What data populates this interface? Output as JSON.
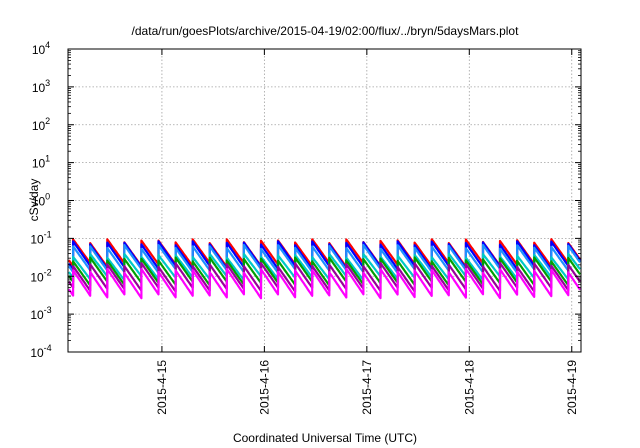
{
  "chart_data": {
    "type": "line",
    "title": "/data/run/goesPlots/archive/2015-04-19/02:00/flux/../bryn/5daysMars.plot",
    "xlabel": "Coordinated Universal Time (UTC)",
    "ylabel": "cSv/day",
    "yscale": "log",
    "ylim": [
      0.0001,
      10000
    ],
    "xlim": [
      "2015-04-14 02:00",
      "2015-04-19 02:10"
    ],
    "grid": true,
    "legend": "none",
    "xticks": [
      "2015-4-15",
      "2015-4-16",
      "2015-4-17",
      "2015-4-18",
      "2015-4-19"
    ],
    "yticks": [
      {
        "base": "10",
        "exp": "-4"
      },
      {
        "base": "10",
        "exp": "-3"
      },
      {
        "base": "10",
        "exp": "-2"
      },
      {
        "base": "10",
        "exp": "-1"
      },
      {
        "base": "10",
        "exp": "0"
      },
      {
        "base": "10",
        "exp": "1"
      },
      {
        "base": "10",
        "exp": "2"
      },
      {
        "base": "10",
        "exp": "3"
      },
      {
        "base": "10",
        "exp": "4"
      }
    ],
    "pattern": {
      "cycle_hours": 4,
      "cycles_per_day": 6,
      "shape": "sawtooth: fast rise then exponential-like decay within each cycle"
    },
    "series": [
      {
        "color": "#ff0000",
        "peak": 0.085,
        "trough": 0.02
      },
      {
        "color": "#0000ff",
        "peak": 0.075,
        "trough": 0.017
      },
      {
        "color": "#1e90ff",
        "peak": 0.06,
        "trough": 0.014
      },
      {
        "color": "#00c8c8",
        "peak": 0.035,
        "trough": 0.009
      },
      {
        "color": "#00a000",
        "peak": 0.028,
        "trough": 0.0065
      },
      {
        "color": "#990099",
        "peak": 0.02,
        "trough": 0.0045
      },
      {
        "color": "#ff00ff",
        "peak": 0.014,
        "trough": 0.003
      }
    ]
  }
}
